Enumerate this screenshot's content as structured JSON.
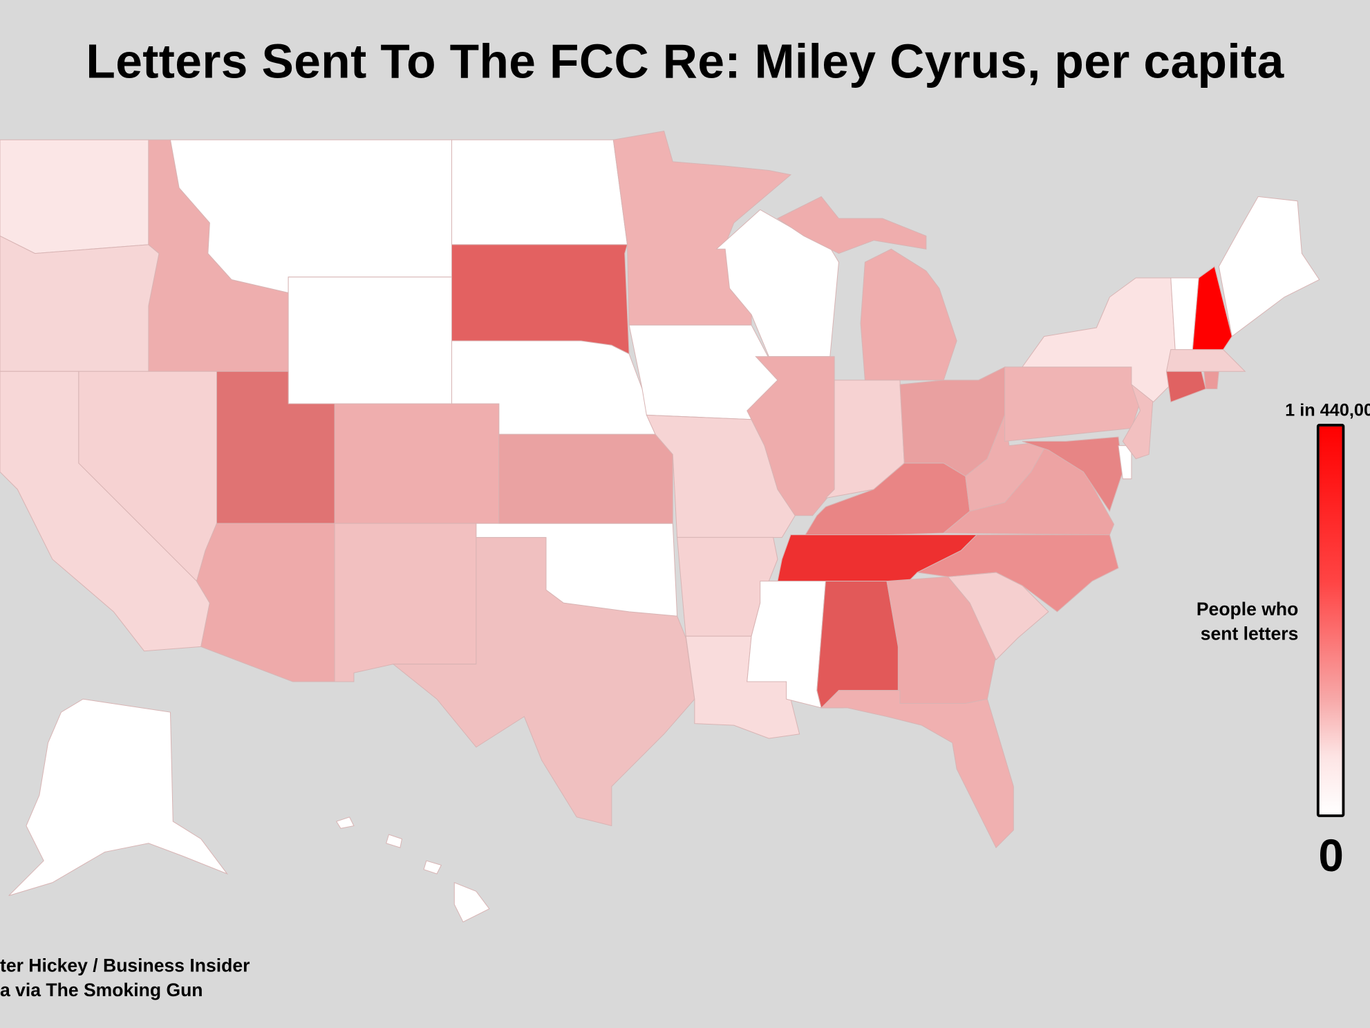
{
  "title": "Letters Sent To The FCC Re: Miley Cyrus, per capita",
  "legend": {
    "title_line1": "People who",
    "title_line2": "sent letters",
    "max_label": "1 in 440,00",
    "min_label": "0",
    "max_color": "#ff0000",
    "min_color": "#ffffff"
  },
  "credits": {
    "line1": "ter Hickey / Business Insider",
    "line2": "a via The Smoking Gun"
  },
  "colors": {
    "background": "#d9d9d9"
  },
  "states": [
    {
      "code": "WA",
      "fill": "#fbe6e6"
    },
    {
      "code": "OR",
      "fill": "#f6d6d6"
    },
    {
      "code": "ID",
      "fill": "#eeaeae"
    },
    {
      "code": "MT",
      "fill": "#ffffff"
    },
    {
      "code": "WY",
      "fill": "#ffffff"
    },
    {
      "code": "ND",
      "fill": "#ffffff"
    },
    {
      "code": "SD",
      "fill": "#e36161"
    },
    {
      "code": "NE",
      "fill": "#ffffff"
    },
    {
      "code": "CO",
      "fill": "#efaeae"
    },
    {
      "code": "UT",
      "fill": "#e07373"
    },
    {
      "code": "NV",
      "fill": "#f6d2d2"
    },
    {
      "code": "CA",
      "fill": "#f7d7d7"
    },
    {
      "code": "AZ",
      "fill": "#eeaaaa"
    },
    {
      "code": "NM",
      "fill": "#f2c0c0"
    },
    {
      "code": "TX",
      "fill": "#f0c0c0"
    },
    {
      "code": "OK",
      "fill": "#ffffff"
    },
    {
      "code": "KS",
      "fill": "#eaa2a2"
    },
    {
      "code": "MN",
      "fill": "#f0b2b2"
    },
    {
      "code": "IA",
      "fill": "#ffffff"
    },
    {
      "code": "MO",
      "fill": "#f6d4d4"
    },
    {
      "code": "AR",
      "fill": "#f6d2d2"
    },
    {
      "code": "LA",
      "fill": "#f9dcdc"
    },
    {
      "code": "WI",
      "fill": "#ffffff"
    },
    {
      "code": "IL",
      "fill": "#eeacac"
    },
    {
      "code": "IN",
      "fill": "#f6d2d2"
    },
    {
      "code": "MI",
      "fill": "#efadad"
    },
    {
      "code": "MI-UP",
      "fill": "#efadad"
    },
    {
      "code": "OH",
      "fill": "#e9a0a0"
    },
    {
      "code": "KY",
      "fill": "#e98585"
    },
    {
      "code": "TN",
      "fill": "#ee3030"
    },
    {
      "code": "MS",
      "fill": "#ffffff"
    },
    {
      "code": "AL",
      "fill": "#e25959"
    },
    {
      "code": "GA",
      "fill": "#eeaaaa"
    },
    {
      "code": "FL",
      "fill": "#f0b0b0"
    },
    {
      "code": "SC",
      "fill": "#f5cfcf"
    },
    {
      "code": "NC",
      "fill": "#ec8f8f"
    },
    {
      "code": "VA",
      "fill": "#eda3a3"
    },
    {
      "code": "WV",
      "fill": "#eeaeae"
    },
    {
      "code": "PA",
      "fill": "#f0b4b4"
    },
    {
      "code": "MD",
      "fill": "#e78585"
    },
    {
      "code": "DE",
      "fill": "#ffffff"
    },
    {
      "code": "NJ",
      "fill": "#f2c0c0"
    },
    {
      "code": "NY",
      "fill": "#fbe3e3"
    },
    {
      "code": "CT",
      "fill": "#e06262"
    },
    {
      "code": "RI",
      "fill": "#eb9a9a"
    },
    {
      "code": "MA",
      "fill": "#f4d0d0"
    },
    {
      "code": "VT",
      "fill": "#ffffff"
    },
    {
      "code": "NH",
      "fill": "#ff0000"
    },
    {
      "code": "ME",
      "fill": "#ffffff"
    },
    {
      "code": "AK",
      "fill": "#ffffff"
    },
    {
      "code": "HI",
      "fill": "#ffffff"
    }
  ]
}
